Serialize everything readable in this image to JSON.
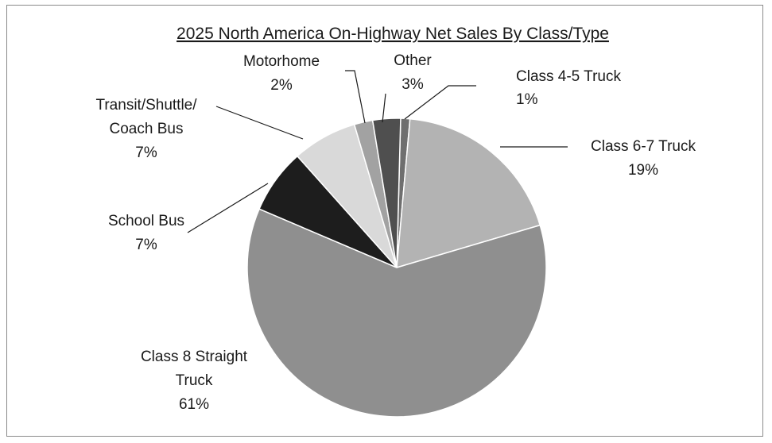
{
  "chart_data": {
    "type": "pie",
    "title": "2025 North America On-Highway Net Sales By Class/Type",
    "slices": [
      {
        "name": "Class 4-5 Truck",
        "value_label": "1%",
        "value": 1,
        "color": "#6f6f6f"
      },
      {
        "name": "Class 6-7 Truck",
        "value_label": "19%",
        "value": 19,
        "color": "#b3b3b3"
      },
      {
        "name": "Class 8 Straight Truck",
        "value_label": "61%",
        "value": 61,
        "color": "#8f8f8f"
      },
      {
        "name": "School Bus",
        "value_label": "7%",
        "value": 7,
        "color": "#1d1d1d"
      },
      {
        "name": "Transit/Shuttle/ Coach Bus",
        "value_label": "7%",
        "value": 7,
        "color": "#d9d9d9"
      },
      {
        "name": "Motorhome",
        "value_label": "2%",
        "value": 2,
        "color": "#a2a2a2"
      },
      {
        "name": "Other",
        "value_label": "3%",
        "value": 3,
        "color": "#4f4f4f"
      }
    ]
  }
}
